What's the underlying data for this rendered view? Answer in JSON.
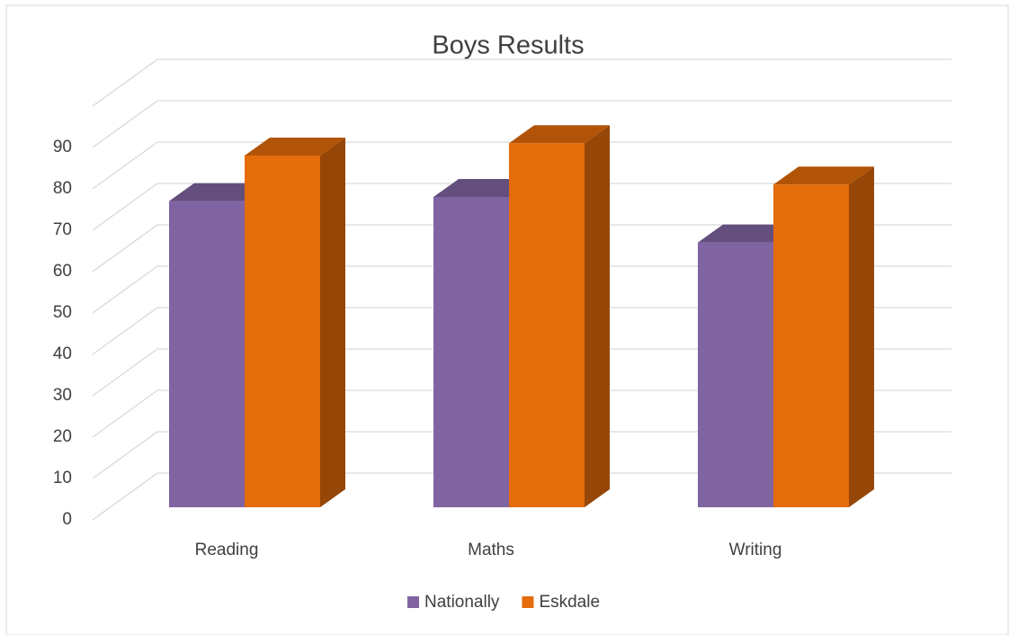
{
  "chart_data": {
    "type": "bar3d",
    "title": "Boys Results",
    "categories": [
      "Reading",
      "Maths",
      "Writing"
    ],
    "series": [
      {
        "name": "Nationally",
        "color": "#8064a2",
        "values": [
          74,
          75,
          64
        ]
      },
      {
        "name": "Eskdale",
        "color": "#e46c0a",
        "values": [
          85,
          88,
          78
        ]
      }
    ],
    "ylim": [
      0,
      100
    ],
    "yticks": [
      0,
      10,
      20,
      30,
      40,
      50,
      60,
      70,
      80,
      90
    ],
    "grid": true,
    "legend": "bottom"
  }
}
